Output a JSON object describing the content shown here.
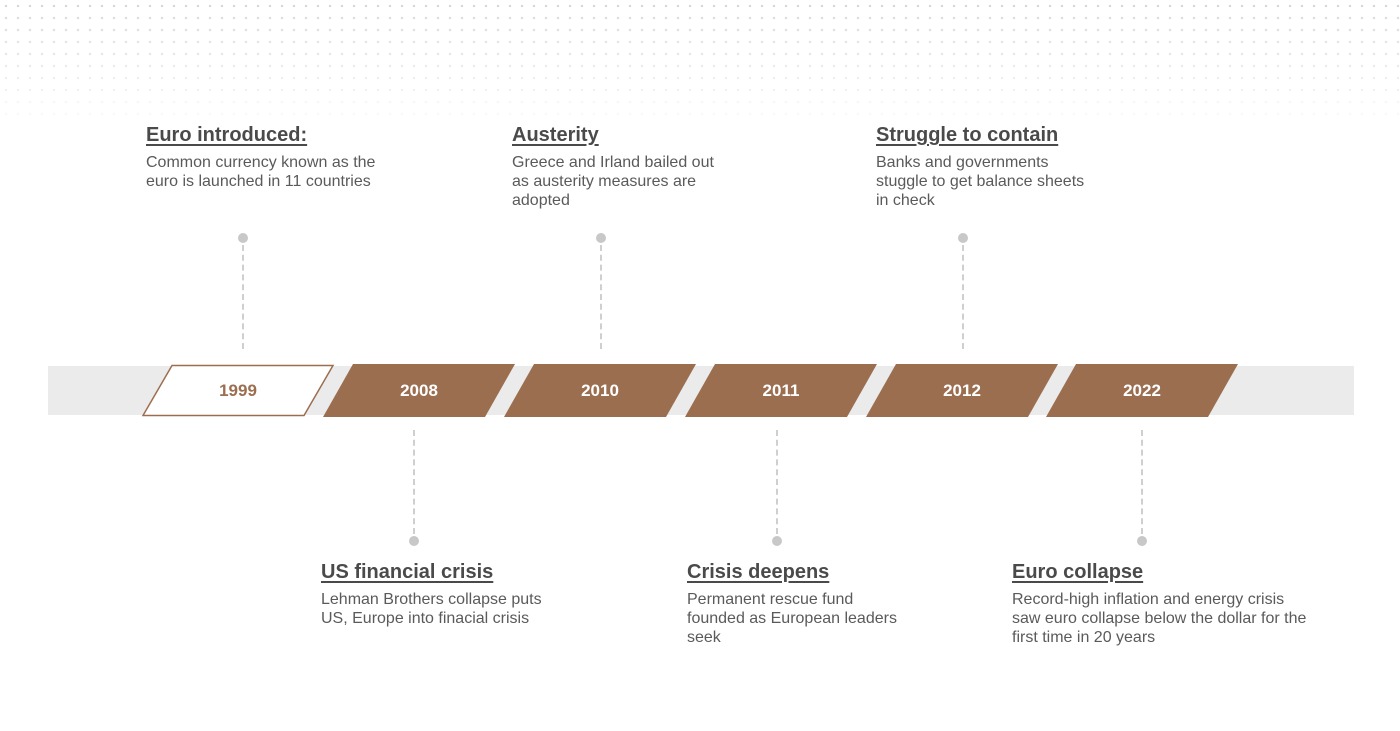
{
  "colors": {
    "accent": "#9c6e50",
    "band": "#ebebeb",
    "connector": "#cfcfcf",
    "title_text": "#4a4a4a",
    "body_text": "#5a5a5a"
  },
  "timeline": [
    {
      "year": "1999",
      "style": "outline",
      "position": "above",
      "title": "Euro introduced:",
      "description": "Common currency known as the euro is launched in 11 countries"
    },
    {
      "year": "2008",
      "style": "filled",
      "position": "below",
      "title": "US financial crisis",
      "description": "Lehman Brothers collapse puts US, Europe into finacial crisis"
    },
    {
      "year": "2010",
      "style": "filled",
      "position": "above",
      "title": "Austerity",
      "description": "Greece and Irland bailed out as austerity measures are adopted"
    },
    {
      "year": "2011",
      "style": "filled",
      "position": "below",
      "title": "Crisis deepens",
      "description": "Permanent rescue fund founded as European leaders seek"
    },
    {
      "year": "2012",
      "style": "filled",
      "position": "above",
      "title": "Struggle to contain",
      "description": "Banks and governments stuggle to get balance sheets in check"
    },
    {
      "year": "2022",
      "style": "filled",
      "position": "below",
      "title": "Euro collapse",
      "description": "Record-high inflation and energy crisis saw euro collapse below the dollar for the first time in 20 years"
    }
  ]
}
